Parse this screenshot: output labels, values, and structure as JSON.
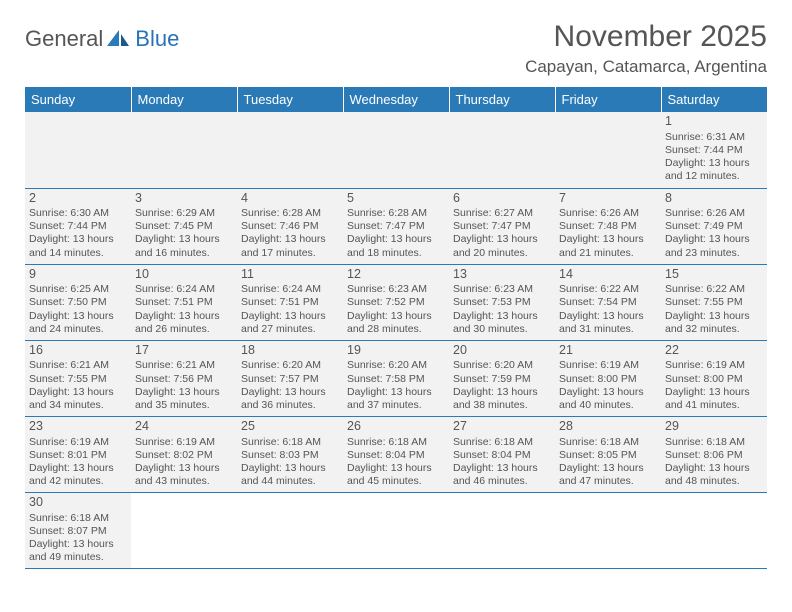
{
  "brand": {
    "part1": "General",
    "part2": "Blue"
  },
  "title": "November 2025",
  "location": "Capayan, Catamarca, Argentina",
  "colors": {
    "header_bg": "#2a7ab8",
    "text": "#555555",
    "row_alt": "#f2f2f2",
    "border": "#2a7ab8"
  },
  "days_of_week": [
    "Sunday",
    "Monday",
    "Tuesday",
    "Wednesday",
    "Thursday",
    "Friday",
    "Saturday"
  ],
  "weeks": [
    [
      null,
      null,
      null,
      null,
      null,
      null,
      {
        "n": "1",
        "sr": "6:31 AM",
        "ss": "7:44 PM",
        "dl": "13 hours and 12 minutes."
      }
    ],
    [
      {
        "n": "2",
        "sr": "6:30 AM",
        "ss": "7:44 PM",
        "dl": "13 hours and 14 minutes."
      },
      {
        "n": "3",
        "sr": "6:29 AM",
        "ss": "7:45 PM",
        "dl": "13 hours and 16 minutes."
      },
      {
        "n": "4",
        "sr": "6:28 AM",
        "ss": "7:46 PM",
        "dl": "13 hours and 17 minutes."
      },
      {
        "n": "5",
        "sr": "6:28 AM",
        "ss": "7:47 PM",
        "dl": "13 hours and 18 minutes."
      },
      {
        "n": "6",
        "sr": "6:27 AM",
        "ss": "7:47 PM",
        "dl": "13 hours and 20 minutes."
      },
      {
        "n": "7",
        "sr": "6:26 AM",
        "ss": "7:48 PM",
        "dl": "13 hours and 21 minutes."
      },
      {
        "n": "8",
        "sr": "6:26 AM",
        "ss": "7:49 PM",
        "dl": "13 hours and 23 minutes."
      }
    ],
    [
      {
        "n": "9",
        "sr": "6:25 AM",
        "ss": "7:50 PM",
        "dl": "13 hours and 24 minutes."
      },
      {
        "n": "10",
        "sr": "6:24 AM",
        "ss": "7:51 PM",
        "dl": "13 hours and 26 minutes."
      },
      {
        "n": "11",
        "sr": "6:24 AM",
        "ss": "7:51 PM",
        "dl": "13 hours and 27 minutes."
      },
      {
        "n": "12",
        "sr": "6:23 AM",
        "ss": "7:52 PM",
        "dl": "13 hours and 28 minutes."
      },
      {
        "n": "13",
        "sr": "6:23 AM",
        "ss": "7:53 PM",
        "dl": "13 hours and 30 minutes."
      },
      {
        "n": "14",
        "sr": "6:22 AM",
        "ss": "7:54 PM",
        "dl": "13 hours and 31 minutes."
      },
      {
        "n": "15",
        "sr": "6:22 AM",
        "ss": "7:55 PM",
        "dl": "13 hours and 32 minutes."
      }
    ],
    [
      {
        "n": "16",
        "sr": "6:21 AM",
        "ss": "7:55 PM",
        "dl": "13 hours and 34 minutes."
      },
      {
        "n": "17",
        "sr": "6:21 AM",
        "ss": "7:56 PM",
        "dl": "13 hours and 35 minutes."
      },
      {
        "n": "18",
        "sr": "6:20 AM",
        "ss": "7:57 PM",
        "dl": "13 hours and 36 minutes."
      },
      {
        "n": "19",
        "sr": "6:20 AM",
        "ss": "7:58 PM",
        "dl": "13 hours and 37 minutes."
      },
      {
        "n": "20",
        "sr": "6:20 AM",
        "ss": "7:59 PM",
        "dl": "13 hours and 38 minutes."
      },
      {
        "n": "21",
        "sr": "6:19 AM",
        "ss": "8:00 PM",
        "dl": "13 hours and 40 minutes."
      },
      {
        "n": "22",
        "sr": "6:19 AM",
        "ss": "8:00 PM",
        "dl": "13 hours and 41 minutes."
      }
    ],
    [
      {
        "n": "23",
        "sr": "6:19 AM",
        "ss": "8:01 PM",
        "dl": "13 hours and 42 minutes."
      },
      {
        "n": "24",
        "sr": "6:19 AM",
        "ss": "8:02 PM",
        "dl": "13 hours and 43 minutes."
      },
      {
        "n": "25",
        "sr": "6:18 AM",
        "ss": "8:03 PM",
        "dl": "13 hours and 44 minutes."
      },
      {
        "n": "26",
        "sr": "6:18 AM",
        "ss": "8:04 PM",
        "dl": "13 hours and 45 minutes."
      },
      {
        "n": "27",
        "sr": "6:18 AM",
        "ss": "8:04 PM",
        "dl": "13 hours and 46 minutes."
      },
      {
        "n": "28",
        "sr": "6:18 AM",
        "ss": "8:05 PM",
        "dl": "13 hours and 47 minutes."
      },
      {
        "n": "29",
        "sr": "6:18 AM",
        "ss": "8:06 PM",
        "dl": "13 hours and 48 minutes."
      }
    ],
    [
      {
        "n": "30",
        "sr": "6:18 AM",
        "ss": "8:07 PM",
        "dl": "13 hours and 49 minutes."
      },
      null,
      null,
      null,
      null,
      null,
      null
    ]
  ],
  "labels": {
    "sunrise": "Sunrise: ",
    "sunset": "Sunset: ",
    "daylight": "Daylight: "
  }
}
